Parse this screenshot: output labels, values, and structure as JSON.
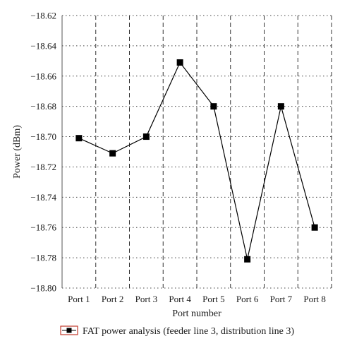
{
  "chart_data": {
    "type": "line",
    "categories": [
      "Port 1",
      "Port 2",
      "Port 3",
      "Port 4",
      "Port 5",
      "Port 6",
      "Port 7",
      "Port 8"
    ],
    "series": [
      {
        "name": "FAT power analysis (feeder line 3, distribution line 3)",
        "values": [
          -18.701,
          -18.711,
          -18.7,
          -18.651,
          -18.68,
          -18.781,
          -18.68,
          -18.76
        ],
        "color": "#000000",
        "marker": "square"
      }
    ],
    "xlabel": "Port number",
    "ylabel": "Power (dBm)",
    "ylim": [
      -18.8,
      -18.62
    ],
    "yticks": [
      -18.62,
      -18.64,
      -18.66,
      -18.68,
      -18.7,
      -18.72,
      -18.74,
      -18.76,
      -18.78,
      -18.8
    ],
    "ytick_labels": [
      "−18.62",
      "−18.64",
      "−18.66",
      "−18.68",
      "−18.70",
      "−18.72",
      "−18.74",
      "−18.76",
      "−18.78",
      "−18.80"
    ],
    "grid": {
      "horizontal": "dotted",
      "vertical": "dashed"
    },
    "legend_position": "bottom-center",
    "legend_box_color": "#c0392b"
  }
}
